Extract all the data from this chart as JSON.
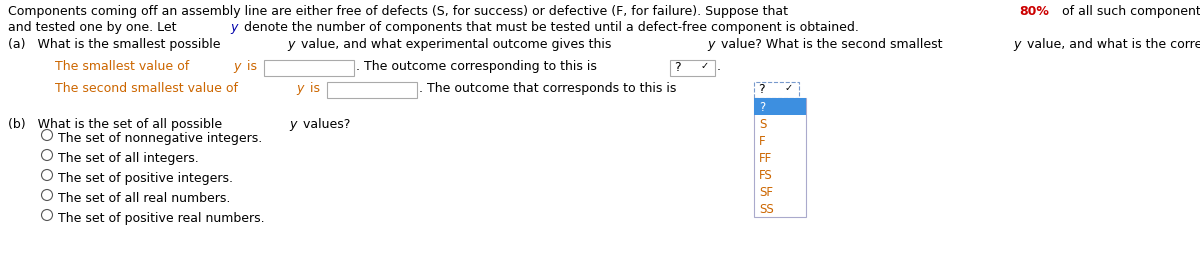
{
  "bg_color": "#ffffff",
  "BLACK": "#000000",
  "RED": "#cc0000",
  "BLUE": "#0000aa",
  "ORANGE": "#cc6600",
  "fs_header": 9.0,
  "fs_body": 9.0,
  "fs_small": 8.5,
  "header1_parts": [
    [
      "Components coming off an assembly line are either free of defects (S, for success) or defective (F, for failure). Suppose that ",
      "#000000",
      false,
      false
    ],
    [
      "80%",
      "#cc0000",
      false,
      true
    ],
    [
      " of all such components are defect-free. Components are independently selected",
      "#000000",
      false,
      false
    ]
  ],
  "header2_parts": [
    [
      "and tested one by one. Let ",
      "#000000",
      false,
      false
    ],
    [
      "y",
      "#0000aa",
      true,
      false
    ],
    [
      " denote the number of components that must be tested until a defect-free component is obtained.",
      "#000000",
      false,
      false
    ]
  ],
  "part_a_parts": [
    [
      "(a)   What is the smallest possible ",
      "#000000",
      false,
      false
    ],
    [
      "y",
      "#000000",
      true,
      false
    ],
    [
      " value, and what experimental outcome gives this ",
      "#000000",
      false,
      false
    ],
    [
      "y",
      "#000000",
      true,
      false
    ],
    [
      " value? What is the second smallest ",
      "#000000",
      false,
      false
    ],
    [
      "y",
      "#000000",
      true,
      false
    ],
    [
      " value, and what is the corresponding outcome?",
      "#000000",
      false,
      false
    ]
  ],
  "line1_parts": [
    [
      "The smallest value of ",
      "#cc6600",
      false,
      false
    ],
    [
      "y",
      "#cc6600",
      true,
      false
    ],
    [
      " is",
      "#cc6600",
      false,
      false
    ]
  ],
  "line1_mid": [
    [
      ". The outcome corresponding to this is",
      "#000000",
      false,
      false
    ]
  ],
  "line2_parts": [
    [
      "The second smallest value of ",
      "#cc6600",
      false,
      false
    ],
    [
      "y",
      "#cc6600",
      true,
      false
    ],
    [
      " is",
      "#cc6600",
      false,
      false
    ]
  ],
  "line2_mid": [
    [
      ". The outcome that corresponds to this is",
      "#000000",
      false,
      false
    ]
  ],
  "part_b_parts": [
    [
      "(b)   What is the set of all possible ",
      "#000000",
      false,
      false
    ],
    [
      "y",
      "#000000",
      true,
      false
    ],
    [
      " values?",
      "#000000",
      false,
      false
    ]
  ],
  "options": [
    "The set of nonnegative integers.",
    "The set of all integers.",
    "The set of positive integers.",
    "The set of all real numbers.",
    "The set of positive real numbers."
  ],
  "dropdown_items": [
    "?",
    "S",
    "F",
    "FF",
    "FS",
    "SF",
    "SS"
  ],
  "dropdown_selected_color": "#3d8fe0",
  "dropdown_border_color": "#aaaacc",
  "box_border_color": "#aaaaaa",
  "radio_color": "#555555"
}
